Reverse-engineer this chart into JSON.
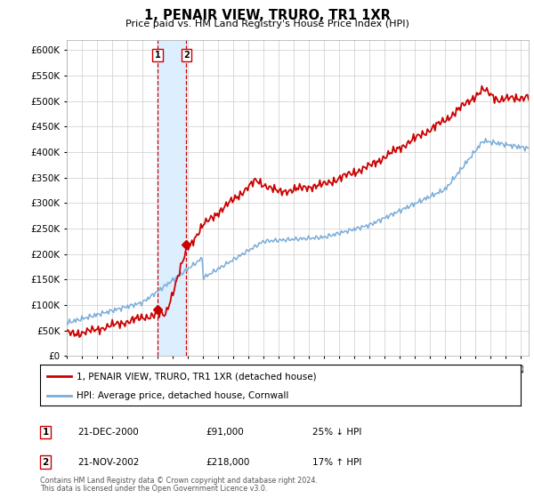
{
  "title": "1, PENAIR VIEW, TRURO, TR1 1XR",
  "subtitle": "Price paid vs. HM Land Registry's House Price Index (HPI)",
  "ylim": [
    0,
    620000
  ],
  "xlim_start": 1995.0,
  "xlim_end": 2025.5,
  "sale1_x": 2001.0,
  "sale1_y": 91000,
  "sale2_x": 2002.9,
  "sale2_y": 218000,
  "legend_line1": "1, PENAIR VIEW, TRURO, TR1 1XR (detached house)",
  "legend_line2": "HPI: Average price, detached house, Cornwall",
  "table_data": [
    [
      "1",
      "21-DEC-2000",
      "£91,000",
      "25% ↓ HPI"
    ],
    [
      "2",
      "21-NOV-2002",
      "£218,000",
      "17% ↑ HPI"
    ]
  ],
  "footnote1": "Contains HM Land Registry data © Crown copyright and database right 2024.",
  "footnote2": "This data is licensed under the Open Government Licence v3.0.",
  "red_color": "#cc0000",
  "blue_color": "#7aacdb",
  "shade_color": "#ddeeff",
  "grid_color": "#cccccc",
  "bg_color": "#ffffff"
}
